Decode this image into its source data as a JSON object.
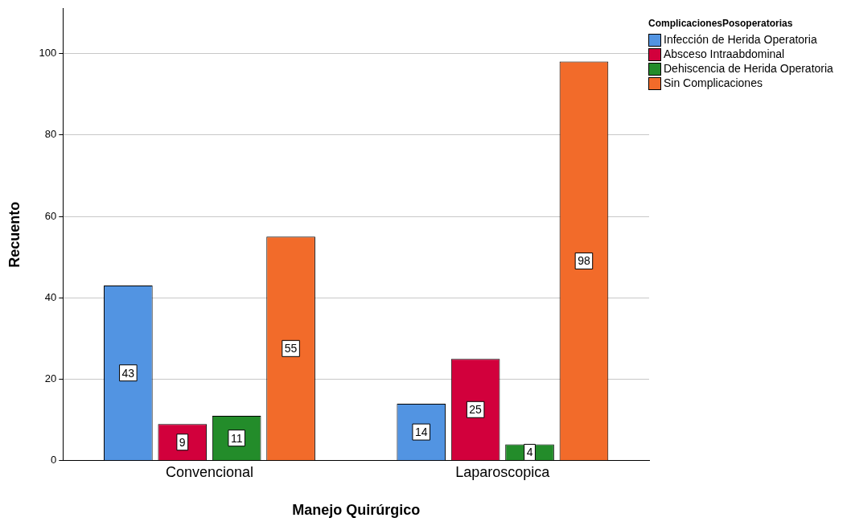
{
  "chart_data": {
    "type": "bar",
    "xlabel": "Manejo Quirúrgico",
    "ylabel": "Recuento",
    "legend_title": "ComplicacionesPosoperatorias",
    "categories": [
      "Convencional",
      "Laparoscopica"
    ],
    "series": [
      {
        "name": "Infección de Herida Operatoria",
        "color": "#5294e2",
        "values": [
          43,
          14
        ]
      },
      {
        "name": "Absceso Intraabdominal",
        "color": "#d2003c",
        "values": [
          9,
          25
        ]
      },
      {
        "name": "Dehiscencia de Herida Operatoria",
        "color": "#238c2a",
        "values": [
          11,
          4
        ]
      },
      {
        "name": "Sin Complicaciones",
        "color": "#f26b2a",
        "values": [
          55,
          98
        ]
      }
    ],
    "ylim": [
      0,
      111
    ],
    "yticks": [
      0,
      20,
      40,
      60,
      80,
      100
    ],
    "grid": "y",
    "legend": "top right",
    "data_labels": true
  }
}
